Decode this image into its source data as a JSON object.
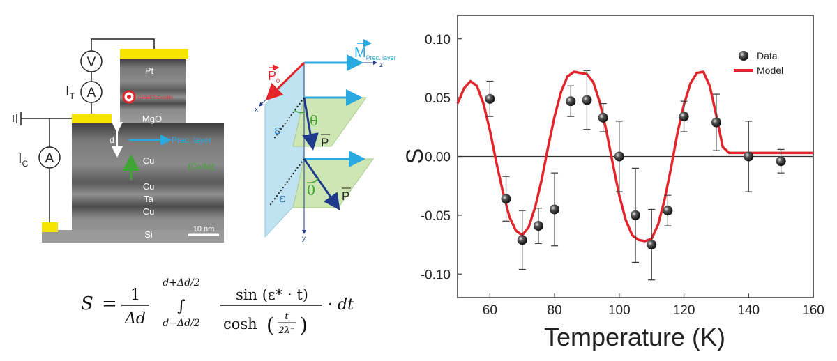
{
  "device": {
    "layers": [
      "Pt",
      "MgO",
      "Cu",
      "Cu",
      "Ta",
      "Cu",
      "Si"
    ],
    "hidden_layer_label": "CoFeB/Ta/Co/IrMn",
    "prec_layer_label": "Prec. layer",
    "free_layer_label": "[Co/Ni]",
    "d_label": "d",
    "scale_bar": "10 nm",
    "meters": [
      "V",
      "A",
      "A"
    ],
    "current_labels": {
      "top": "I",
      "top_sub": "T",
      "bottom": "I",
      "bottom_sub": "C"
    },
    "colors": {
      "contact": "#f4e400",
      "prec_arrow": "#2aa8e0",
      "free_arrow": "#3fa535",
      "target_ring": "#e4242b"
    }
  },
  "geometry": {
    "m_label": "M",
    "m_sub": "Prec. layer",
    "p0_label": "P",
    "p0_sub": "0",
    "p_label": "P",
    "theta": "θ",
    "epsilon": "ε",
    "axes": {
      "x": "x",
      "y": "y",
      "z": "z"
    },
    "colors": {
      "m_arrow": "#2aa8e0",
      "p0_arrow": "#e4242b",
      "p_arrow": "#1f3a8a",
      "plane_blue": "#bfe3f1",
      "plane_green": "#cde6b3"
    }
  },
  "equation": {
    "lhs": "S",
    "eq": "=",
    "one": "1",
    "delta_d": "Δd",
    "upper_limit": "d+Δd/2",
    "integral": "∫",
    "lower_limit": "d−Δd/2",
    "numerator": "sin (ε* · t)",
    "denominator": "cosh",
    "inner_num": "t",
    "inner_den": "2λ⁻",
    "tail": "· dt"
  },
  "chart_data": {
    "type": "scatter",
    "title": "",
    "xlabel": "Temperature (K)",
    "ylabel": "S",
    "xlim": [
      50,
      160
    ],
    "ylim": [
      -0.12,
      0.12
    ],
    "xticks": [
      60,
      80,
      100,
      120,
      140,
      160
    ],
    "yticks": [
      -0.1,
      -0.05,
      0.0,
      0.05,
      0.1
    ],
    "ytick_labels": [
      "-0.10",
      "-0.05",
      "0.00",
      "0.05",
      "0.10"
    ],
    "grid": false,
    "legend": "top-right",
    "zero_line": true,
    "series": [
      {
        "name": "Data",
        "kind": "points_with_errorbars",
        "color": "#222222",
        "x": [
          60,
          65,
          70,
          75,
          80,
          85,
          90,
          95,
          100,
          105,
          110,
          115,
          120,
          130,
          140,
          150
        ],
        "y": [
          0.049,
          -0.036,
          -0.071,
          -0.059,
          -0.045,
          0.047,
          0.048,
          0.033,
          0.0,
          -0.05,
          -0.075,
          -0.046,
          0.034,
          0.029,
          0.0,
          -0.004
        ],
        "err": [
          0.015,
          0.019,
          0.025,
          0.015,
          0.031,
          0.013,
          0.025,
          0.012,
          0.03,
          0.04,
          0.03,
          0.013,
          0.013,
          0.024,
          0.03,
          0.01
        ]
      },
      {
        "name": "Model",
        "kind": "line",
        "color": "#e4242b",
        "x": [
          50,
          52,
          54,
          56,
          58,
          60,
          62,
          64,
          66,
          68,
          70,
          72,
          74,
          76,
          78,
          80,
          82,
          84,
          86,
          88,
          90,
          92,
          94,
          96,
          98,
          100,
          102,
          104,
          106,
          108,
          110,
          112,
          114,
          116,
          118,
          120,
          122,
          124,
          126,
          128,
          130,
          132,
          134,
          136,
          140,
          150,
          160
        ],
        "y": [
          0.045,
          0.058,
          0.064,
          0.06,
          0.045,
          0.022,
          -0.005,
          -0.03,
          -0.051,
          -0.063,
          -0.067,
          -0.06,
          -0.043,
          -0.02,
          0.008,
          0.034,
          0.055,
          0.068,
          0.072,
          0.071,
          0.07,
          0.063,
          0.046,
          0.022,
          -0.006,
          -0.033,
          -0.054,
          -0.067,
          -0.071,
          -0.072,
          -0.07,
          -0.058,
          -0.037,
          -0.01,
          0.02,
          0.044,
          0.062,
          0.071,
          0.072,
          0.06,
          0.035,
          0.008,
          0.003,
          0.003,
          0.003,
          0.003,
          0.003
        ]
      }
    ]
  }
}
